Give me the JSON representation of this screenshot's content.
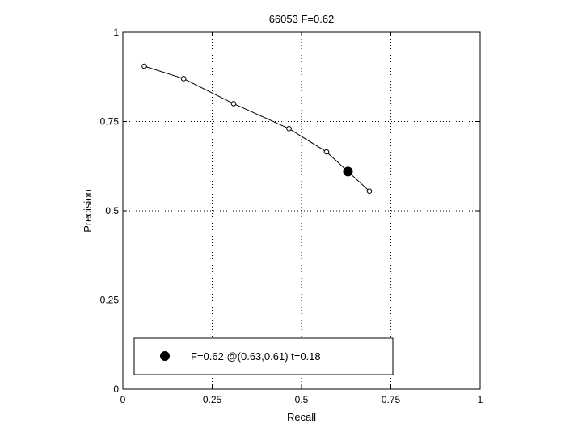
{
  "chart_data": {
    "type": "line",
    "title": "66053 F=0.62",
    "xlabel": "Recall",
    "ylabel": "Precision",
    "xlim": [
      0,
      1
    ],
    "ylim": [
      0,
      1
    ],
    "xticks": [
      0,
      0.25,
      0.5,
      0.75,
      1
    ],
    "yticks": [
      0,
      0.25,
      0.5,
      0.75,
      1
    ],
    "xtick_labels": [
      "0",
      "0.25",
      "0.5",
      "0.75",
      "1"
    ],
    "ytick_labels": [
      "0",
      "0.25",
      "0.5",
      "0.75",
      "1"
    ],
    "grid": true,
    "series": [
      {
        "x": [
          0.06,
          0.17,
          0.31,
          0.465,
          0.57,
          0.69
        ],
        "y": [
          0.905,
          0.87,
          0.8,
          0.73,
          0.665,
          0.555
        ],
        "marker": "open-circle",
        "color": "#000000"
      }
    ],
    "best_point": {
      "x": 0.63,
      "y": 0.61,
      "marker": "filled-circle"
    },
    "legend": {
      "placement": "bottom-left",
      "text": "F=0.62 @(0.63,0.61) t=0.18"
    }
  }
}
